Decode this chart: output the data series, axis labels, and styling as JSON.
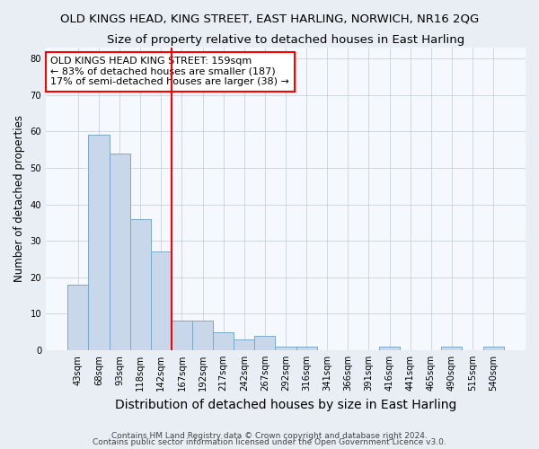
{
  "title": "OLD KINGS HEAD, KING STREET, EAST HARLING, NORWICH, NR16 2QG",
  "subtitle": "Size of property relative to detached houses in East Harling",
  "xlabel": "Distribution of detached houses by size in East Harling",
  "ylabel": "Number of detached properties",
  "categories": [
    "43sqm",
    "68sqm",
    "93sqm",
    "118sqm",
    "142sqm",
    "167sqm",
    "192sqm",
    "217sqm",
    "242sqm",
    "267sqm",
    "292sqm",
    "316sqm",
    "341sqm",
    "366sqm",
    "391sqm",
    "416sqm",
    "441sqm",
    "465sqm",
    "490sqm",
    "515sqm",
    "540sqm"
  ],
  "values": [
    18,
    59,
    54,
    36,
    27,
    8,
    8,
    5,
    3,
    4,
    1,
    1,
    0,
    0,
    0,
    1,
    0,
    0,
    1,
    0,
    1
  ],
  "bar_color": "#c8d8ea",
  "bar_edge_color": "#7aaac8",
  "red_line_index": 5,
  "annotation_line1": "OLD KINGS HEAD KING STREET: 159sqm",
  "annotation_line2": "← 83% of detached houses are smaller (187)",
  "annotation_line3": "17% of semi-detached houses are larger (38) →",
  "ylim": [
    0,
    83
  ],
  "yticks": [
    0,
    10,
    20,
    30,
    40,
    50,
    60,
    70,
    80
  ],
  "footer1": "Contains HM Land Registry data © Crown copyright and database right 2024.",
  "footer2": "Contains public sector information licensed under the Open Government Licence v3.0.",
  "bg_color": "#e8eef4",
  "plot_bg_color": "#f5f8fc",
  "grid_color": "#c0ccd8",
  "title_fontsize": 9.5,
  "subtitle_fontsize": 9.5,
  "ylabel_fontsize": 8.5,
  "xlabel_fontsize": 10
}
